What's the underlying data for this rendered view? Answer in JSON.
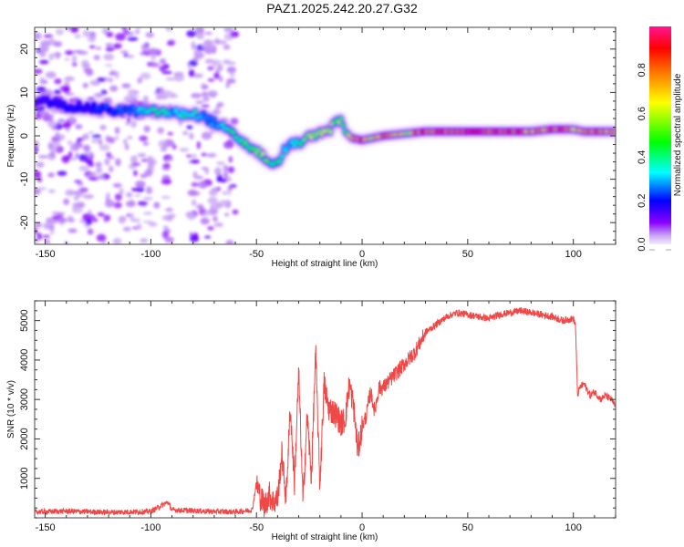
{
  "title": "PAZ1.2025.242.20.27.G32",
  "colorbar": {
    "label": "Normalized spectral amplitude",
    "range": [
      0.0,
      1.0
    ],
    "ticks": [
      "0.0",
      "0.2",
      "0.4",
      "0.6",
      "0.8"
    ],
    "tick_values": [
      0.0,
      0.2,
      0.4,
      0.6,
      0.8
    ],
    "colormap": [
      "#f4ecfb",
      "#8a00ff",
      "#0000ff",
      "#00ffff",
      "#00ff00",
      "#ffff00",
      "#ff8000",
      "#ff0000",
      "#ff1493"
    ]
  },
  "chart_data": [
    {
      "type": "heatmap",
      "name": "spectrogram",
      "title": "PAZ1.2025.242.20.27.G32",
      "xlabel": "Height of straight line (km)",
      "ylabel": "Frequency (Hz)",
      "xlim": [
        -155,
        120
      ],
      "ylim": [
        -25,
        25
      ],
      "xticks": [
        -150,
        -100,
        -50,
        0,
        50,
        100
      ],
      "yticks": [
        -20,
        -10,
        0,
        10,
        20
      ],
      "xtick_labels": [
        "-150",
        "-100",
        "-50",
        "0",
        "50",
        "100"
      ],
      "ytick_labels": [
        "-20",
        "-10",
        "0",
        "10",
        "20"
      ],
      "ridge": {
        "x": [
          -155,
          -150,
          -140,
          -130,
          -120,
          -110,
          -100,
          -95,
          -90,
          -80,
          -75,
          -70,
          -65,
          -60,
          -55,
          -50,
          -45,
          -42,
          -40,
          -38,
          -35,
          -30,
          -25,
          -20,
          -15,
          -12,
          -10,
          -8,
          -5,
          0,
          5,
          10,
          20,
          30,
          50,
          70,
          80,
          90,
          95,
          100,
          105,
          110,
          120
        ],
        "y": [
          7,
          8,
          7,
          6.5,
          6,
          5.8,
          5.5,
          5.5,
          5.2,
          5,
          4.5,
          3,
          1.5,
          0,
          -2,
          -3.5,
          -5.5,
          -7,
          -6.5,
          -4,
          -2.5,
          -1.5,
          -0.5,
          0.5,
          1.5,
          3.5,
          4,
          1,
          -0.5,
          -1,
          -0.5,
          0,
          0.5,
          1,
          1,
          1,
          1,
          1.5,
          1.5,
          1.5,
          1,
          1,
          1
        ],
        "amplitude": [
          0.15,
          0.2,
          0.2,
          0.2,
          0.25,
          0.25,
          0.45,
          0.5,
          0.35,
          0.45,
          0.3,
          0.3,
          0.4,
          0.45,
          0.5,
          0.55,
          0.6,
          0.45,
          0.5,
          0.4,
          0.35,
          0.45,
          0.6,
          0.65,
          0.7,
          0.55,
          0.6,
          0.5,
          0.75,
          0.95,
          0.7,
          0.95,
          0.7,
          0.95,
          0.98,
          0.98,
          0.8,
          0.95,
          0.95,
          0.8,
          0.95,
          0.95,
          0.75
        ]
      },
      "noise_region_x": [
        -155,
        -60
      ]
    },
    {
      "type": "line",
      "name": "snr",
      "xlabel": "Height of straight line (km)",
      "ylabel": "SNR (10 * v/v)",
      "xlim": [
        -155,
        120
      ],
      "ylim": [
        0,
        5500
      ],
      "xticks": [
        -150,
        -100,
        -50,
        0,
        50,
        100
      ],
      "yticks": [
        1000,
        2000,
        3000,
        4000,
        5000
      ],
      "xtick_labels": [
        "-150",
        "-100",
        "-50",
        "0",
        "50",
        "100"
      ],
      "ytick_labels": [
        "1000",
        "2000",
        "3000",
        "4000",
        "5000"
      ],
      "series": [
        {
          "name": "SNR",
          "color": "#ee3333",
          "x": [
            -155,
            -140,
            -120,
            -100,
            -92,
            -90,
            -80,
            -70,
            -60,
            -52,
            -50,
            -48,
            -46,
            -44,
            -42,
            -40,
            -38,
            -36,
            -34,
            -32,
            -30,
            -28,
            -26,
            -24,
            -22,
            -20,
            -18,
            -16,
            -14,
            -12,
            -10,
            -8,
            -6,
            -4,
            -2,
            0,
            2,
            4,
            6,
            8,
            10,
            15,
            20,
            25,
            30,
            35,
            40,
            45,
            50,
            55,
            60,
            65,
            70,
            75,
            80,
            85,
            90,
            95,
            100,
            101,
            102,
            103,
            105,
            108,
            110,
            113,
            115,
            118,
            120
          ],
          "y": [
            150,
            170,
            140,
            160,
            400,
            200,
            180,
            160,
            150,
            200,
            900,
            500,
            300,
            600,
            400,
            500,
            1600,
            500,
            2800,
            900,
            3700,
            400,
            2600,
            1000,
            4200,
            800,
            3400,
            2800,
            2700,
            2600,
            2400,
            2500,
            3400,
            2800,
            1700,
            2300,
            2600,
            3200,
            2700,
            3300,
            3300,
            3600,
            3900,
            4200,
            4700,
            4900,
            5100,
            5200,
            5150,
            5100,
            5050,
            5150,
            5200,
            5250,
            5200,
            5150,
            5100,
            5000,
            5050,
            4900,
            3100,
            3300,
            3400,
            3100,
            3200,
            3000,
            3100,
            3000,
            2800
          ]
        }
      ]
    }
  ]
}
